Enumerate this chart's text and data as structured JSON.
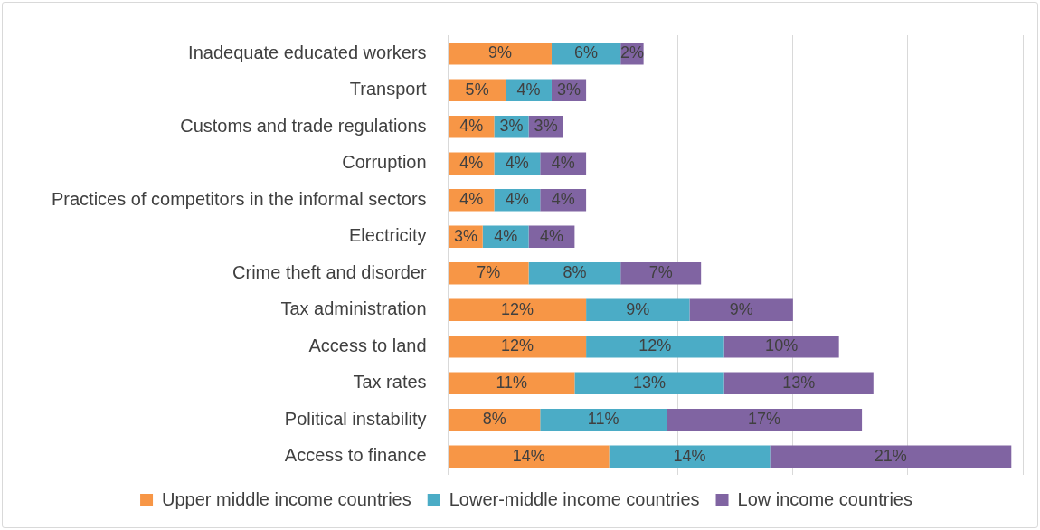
{
  "chart_data": {
    "type": "bar",
    "orientation": "horizontal",
    "stacked": true,
    "categories": [
      "Inadequate educated workers",
      "Transport",
      "Customs and trade regulations",
      "Corruption",
      "Practices of competitors in the informal sectors",
      "Electricity",
      "Crime theft and disorder",
      "Tax administration",
      "Access to land",
      "Tax rates",
      "Political instability",
      "Access to finance"
    ],
    "series": [
      {
        "name": "Upper middle income countries",
        "color": "#f79646",
        "values": [
          9,
          5,
          4,
          4,
          4,
          3,
          7,
          12,
          12,
          11,
          8,
          14
        ],
        "value_labels": [
          "9%",
          "5%",
          "4%",
          "4%",
          "4%",
          "3%",
          "7%",
          "12%",
          "12%",
          "11%",
          "8%",
          "14%"
        ]
      },
      {
        "name": "Lower-middle income countries",
        "color": "#4bacc6",
        "values": [
          6,
          4,
          3,
          4,
          4,
          4,
          8,
          9,
          12,
          13,
          11,
          14
        ],
        "value_labels": [
          "6%",
          "4%",
          "3%",
          "4%",
          "4%",
          "4%",
          "8%",
          "9%",
          "12%",
          "13%",
          "11%",
          "14%"
        ]
      },
      {
        "name": "Low income countries",
        "color": "#8064a2",
        "values": [
          2,
          3,
          3,
          4,
          4,
          4,
          7,
          9,
          10,
          13,
          17,
          21
        ],
        "value_labels": [
          "2%",
          "3%",
          "3%",
          "4%",
          "4%",
          "4%",
          "7%",
          "9%",
          "10%",
          "13%",
          "17%",
          "21%"
        ]
      }
    ],
    "xlim": [
      0,
      50
    ],
    "xticks": [
      {
        "value": 0,
        "label": null
      },
      {
        "value": 10,
        "label": null
      },
      {
        "value": 20,
        "label": null
      },
      {
        "value": 30,
        "label": null
      },
      {
        "value": 40,
        "label": null
      },
      {
        "value": 50,
        "label": null
      }
    ],
    "tick_labels": "y",
    "grid": "x",
    "legend": "bottom"
  }
}
